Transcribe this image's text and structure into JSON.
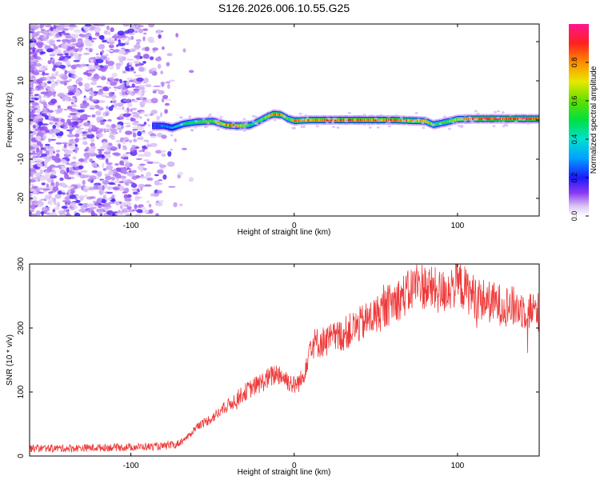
{
  "title": "S126.2026.006.10.55.G25",
  "chart_data": [
    {
      "type": "heatmap",
      "title": "S126.2026.006.10.55.G25",
      "xlabel": "Height of straight line (km)",
      "ylabel": "Frequency (Hz)",
      "xlim": [
        -162,
        150
      ],
      "ylim": [
        -24.5,
        24.5
      ],
      "x_ticks": [
        -100,
        0,
        100
      ],
      "y_ticks": [
        -20,
        -10,
        0,
        10,
        20
      ],
      "colorbar": {
        "label": "Normalized spectral amplitude",
        "range": [
          0,
          1
        ],
        "ticks": [
          "0.0",
          "0.2",
          "0.4",
          "0.6",
          "0.8"
        ]
      },
      "noise_region_x": [
        -162,
        -75
      ],
      "ridge": {
        "description": "frequency of the strongest spectral line vs height",
        "x": [
          -87,
          -80,
          -75,
          -68,
          -60,
          -50,
          -42,
          -35,
          -27,
          -22,
          -17,
          -13,
          -8,
          -4,
          0,
          10,
          30,
          60,
          80,
          85,
          92,
          100,
          110,
          150
        ],
        "y": [
          -1.5,
          -1.5,
          -2.0,
          -1.0,
          -0.5,
          -0.3,
          -1.3,
          -1.5,
          -1.3,
          -0.3,
          0.8,
          1.5,
          1.3,
          0.3,
          -0.2,
          0.0,
          0.0,
          0.0,
          -0.3,
          -1.2,
          -0.6,
          0.2,
          0.3,
          0.3
        ],
        "peak_amplitude": [
          0.25,
          0.3,
          0.35,
          0.5,
          0.6,
          0.6,
          0.85,
          0.9,
          0.5,
          0.6,
          0.7,
          0.9,
          0.85,
          0.6,
          0.85,
          0.85,
          0.9,
          0.9,
          0.8,
          0.6,
          0.6,
          0.75,
          0.95,
          0.95
        ]
      }
    },
    {
      "type": "line",
      "xlabel": "Height of straight line (km)",
      "ylabel": "SNR (10 * v/v)",
      "xlim": [
        -162,
        150
      ],
      "ylim": [
        0,
        300
      ],
      "x_ticks": [
        -100,
        0,
        100
      ],
      "y_ticks": [
        0,
        100,
        200,
        300
      ],
      "series": [
        {
          "name": "SNR",
          "color": "#ee3b3b",
          "x": [
            -162,
            -140,
            -120,
            -100,
            -80,
            -72,
            -65,
            -60,
            -50,
            -40,
            -30,
            -20,
            -10,
            0,
            5,
            10,
            20,
            30,
            40,
            50,
            60,
            70,
            75,
            80,
            90,
            100,
            110,
            120,
            130,
            140,
            150
          ],
          "y": [
            12,
            12,
            13,
            14,
            15,
            18,
            30,
            45,
            60,
            80,
            100,
            115,
            130,
            110,
            120,
            175,
            180,
            190,
            205,
            220,
            240,
            255,
            270,
            265,
            255,
            270,
            250,
            240,
            235,
            230,
            225
          ]
        }
      ]
    }
  ]
}
